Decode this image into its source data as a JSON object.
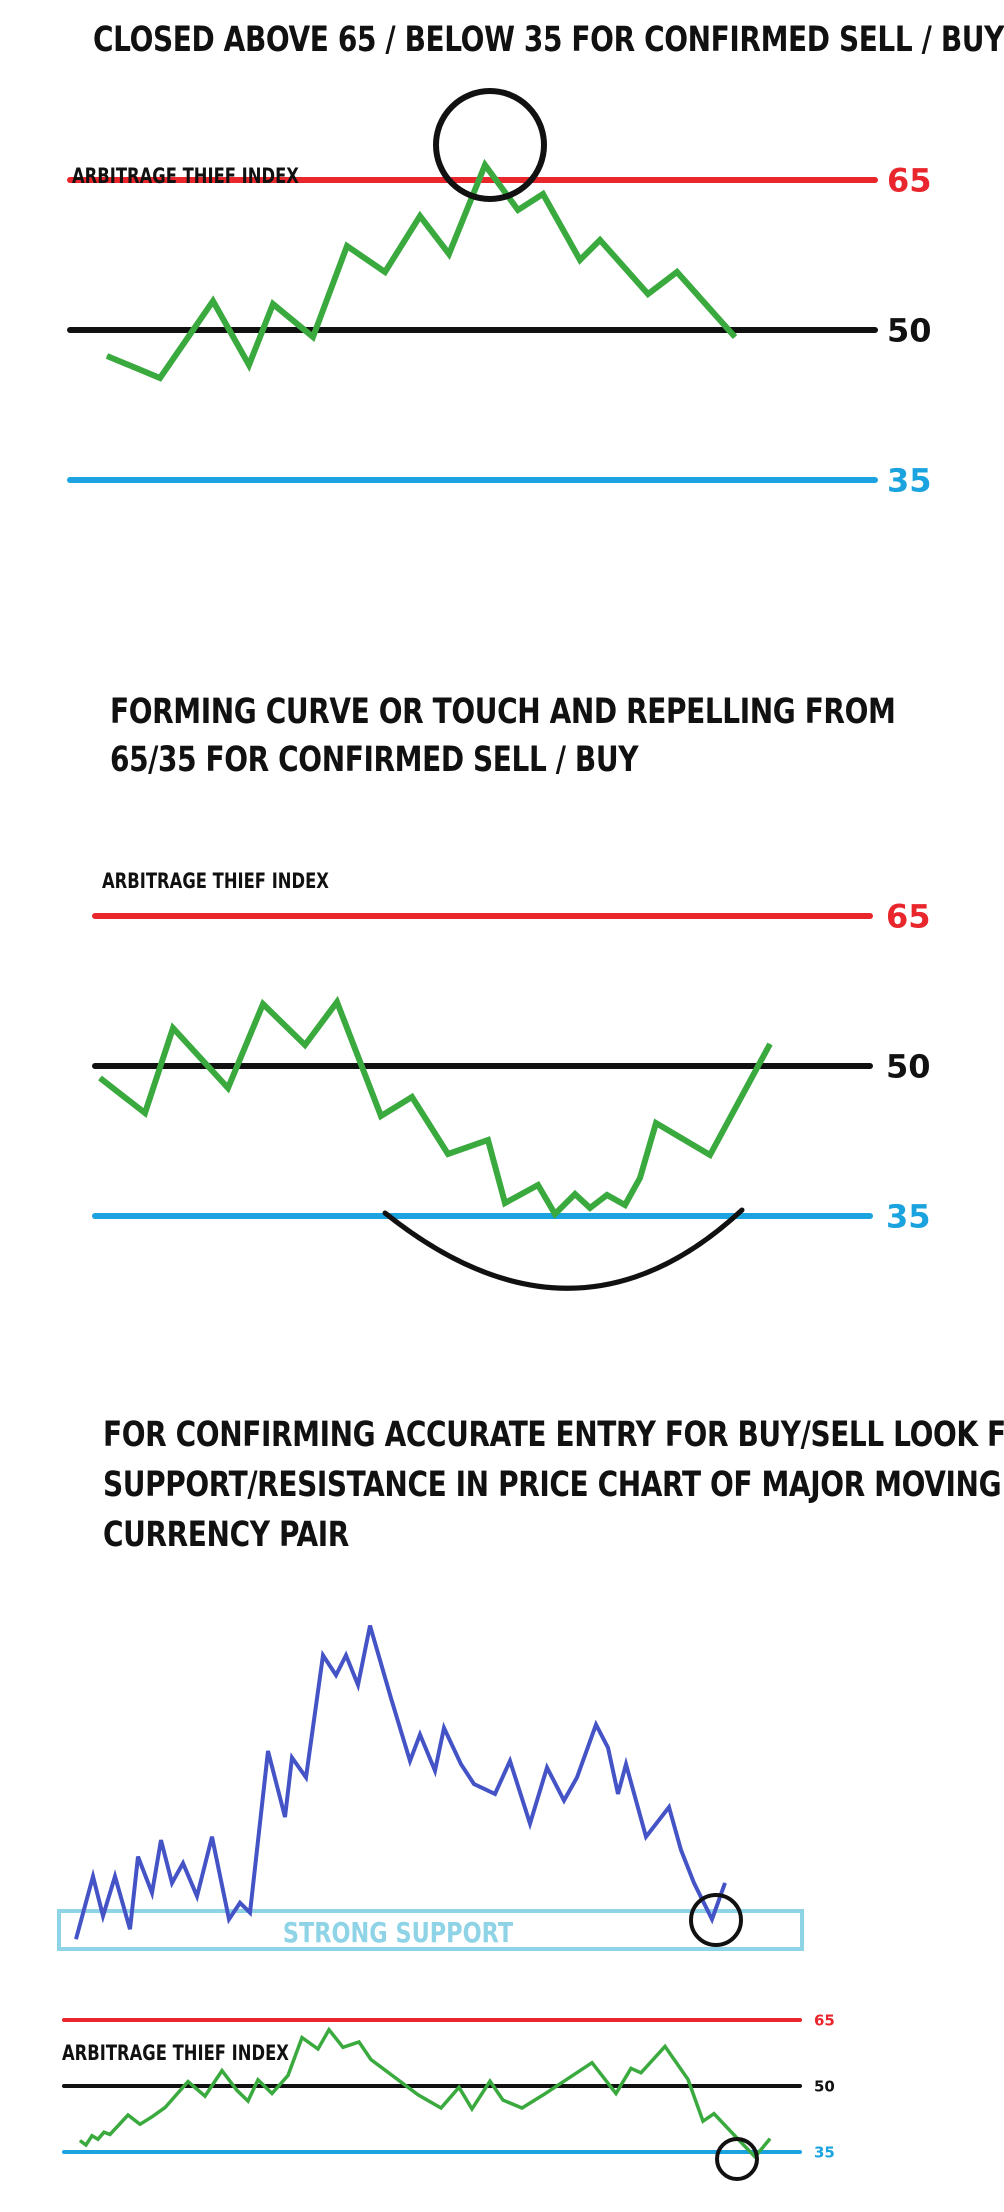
{
  "headings": {
    "panel1": "CLOSED ABOVE 65 / BELOW 35 FOR CONFIRMED SELL / BUY",
    "panel2_line1": "FORMING CURVE OR TOUCH AND REPELLING FROM",
    "panel2_line2": "65/35   FOR CONFIRMED SELL / BUY",
    "panel3_line1": "FOR CONFIRMING ACCURATE ENTRY FOR BUY/SELL LOOK FOR",
    "panel3_line2": "SUPPORT/RESISTANCE IN PRICE CHART OF MAJOR MOVING",
    "panel3_line3": "CURRENCY PAIR"
  },
  "colors": {
    "upper": "#e8262c",
    "mid": "#111111",
    "lower": "#1aa3df",
    "index_line": "#3aaa3f",
    "price_line": "#4453c6",
    "support_box": "#8fd3e6",
    "marker": "#111111"
  },
  "chart_data": [
    {
      "type": "line",
      "title": "",
      "series_label": "ARBITRAGE THIEF INDEX",
      "levels": [
        {
          "label": "65",
          "value": 65,
          "color_key": "upper"
        },
        {
          "label": "50",
          "value": 50,
          "color_key": "mid"
        },
        {
          "label": "35",
          "value": 35,
          "color_key": "lower"
        }
      ],
      "x": [
        0,
        1,
        2,
        3,
        4,
        5,
        6,
        7,
        8,
        9,
        10,
        11,
        12,
        13,
        14,
        15,
        16,
        17,
        18,
        19
      ],
      "values": [
        47.4,
        45.2,
        52.9,
        46.5,
        52.6,
        49.3,
        58.4,
        55.8,
        61.4,
        57.6,
        66.5,
        62.0,
        63.6,
        57.0,
        59.0,
        53.6,
        55.8,
        49.3,
        null,
        null
      ],
      "ylim": [
        30,
        70
      ],
      "annotation": "circle at peak above 65",
      "annotation_index": 10
    },
    {
      "type": "line",
      "title": "",
      "series_label": "ARBITRAGE THIEF INDEX",
      "levels": [
        {
          "label": "65",
          "value": 65,
          "color_key": "upper"
        },
        {
          "label": "50",
          "value": 50,
          "color_key": "mid"
        },
        {
          "label": "35",
          "value": 35,
          "color_key": "lower"
        }
      ],
      "x": [
        0,
        1,
        2,
        3,
        4,
        5,
        6,
        7,
        8,
        9,
        10,
        11,
        12,
        13,
        14,
        15,
        16,
        17,
        18,
        19
      ],
      "values": [
        48.8,
        45.3,
        53.8,
        47.8,
        56.2,
        52.1,
        56.4,
        45.0,
        46.9,
        41.2,
        42.6,
        36.3,
        38.1,
        35.2,
        37.2,
        35.8,
        37.1,
        36.1,
        38.8,
        44.3
      ],
      "extra_values": [
        41.1,
        52.2
      ],
      "ylim": [
        30,
        70
      ],
      "annotation": "curve near 35"
    },
    {
      "type": "line",
      "title": "",
      "series_label": "",
      "x": [
        0,
        1,
        2,
        3,
        4,
        5,
        6,
        7,
        8,
        9,
        10,
        11,
        12,
        13,
        14,
        15,
        16,
        17,
        18,
        19,
        20,
        21,
        22,
        23,
        24,
        25,
        26,
        27,
        28,
        29,
        30,
        31,
        32,
        33,
        34,
        35,
        36,
        37,
        38,
        39,
        40,
        41,
        42,
        43,
        44,
        45,
        46
      ],
      "values": [
        3,
        22,
        10,
        22,
        6,
        28,
        17,
        33,
        20,
        26,
        16,
        34,
        9,
        14,
        11,
        60,
        40,
        58,
        52,
        89,
        83,
        89,
        80,
        98,
        76,
        57,
        65,
        54,
        67,
        56,
        50,
        47,
        57,
        38,
        55,
        45,
        52,
        68,
        61,
        47,
        56,
        34,
        43,
        30,
        20,
        9,
        20
      ],
      "ylim": [
        0,
        100
      ],
      "support_label": "STRONG SUPPORT",
      "annotation": "circle at support touch"
    },
    {
      "type": "line",
      "title": "",
      "series_label": "ARBITRAGE THIEF INDEX",
      "levels": [
        {
          "label": "65",
          "value": 65,
          "color_key": "upper"
        },
        {
          "label": "50",
          "value": 50,
          "color_key": "mid"
        },
        {
          "label": "35",
          "value": 35,
          "color_key": "lower"
        }
      ],
      "values": [
        37.6,
        36.6,
        38.7,
        37.9,
        39.5,
        39.0,
        43.4,
        41.3,
        43.0,
        45.1,
        51.0,
        47.7,
        53.5,
        49.0,
        46.6,
        51.4,
        48.3,
        52.4,
        61.0,
        58.4,
        62.8,
        58.8,
        60.0,
        56.0,
        48.0,
        45.0,
        49.7,
        44.8,
        51.1,
        46.8,
        45.0,
        48.1,
        55.3,
        48.3,
        54.0,
        53.0,
        59.0,
        51.5,
        42.0,
        43.7,
        38.4,
        33.9,
        38.0
      ],
      "ylim": [
        30,
        70
      ],
      "annotation": "circle at touch of 35"
    }
  ]
}
